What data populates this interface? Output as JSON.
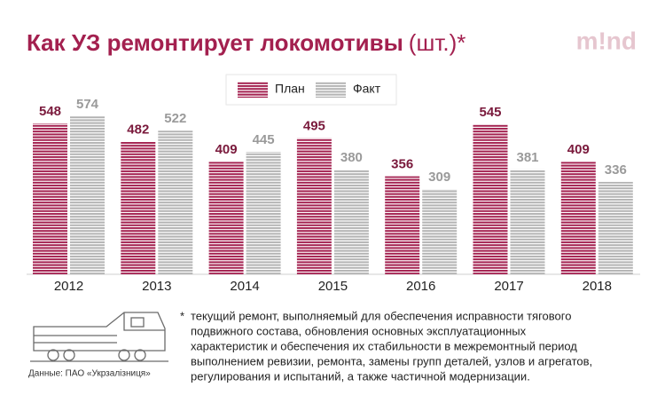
{
  "chart_data": {
    "type": "bar",
    "title": "Как УЗ ремонтирует локомотивы",
    "unit": "(шт.)*",
    "logo": "m!nd",
    "categories": [
      "2012",
      "2013",
      "2014",
      "2015",
      "2016",
      "2017",
      "2018"
    ],
    "series": [
      {
        "name": "План",
        "color": "#a3204f",
        "values": [
          548,
          482,
          409,
          495,
          356,
          545,
          409
        ]
      },
      {
        "name": "Факт",
        "color": "#b3b3b3",
        "values": [
          574,
          522,
          445,
          380,
          309,
          381,
          336
        ]
      }
    ],
    "footnote_marker": "*",
    "footnote": [
      "текущий ремонт, выполняемый для обеспечения исправности тягового",
      "подвижного состава, обновления основных эксплуатационных",
      "характеристик и обеспечения их стабильности в межремонтный период",
      "выполнением ревизии, ремонта, замены групп деталей, узлов и агрегатов,",
      "регулирования и испытаний, а также частичной модернизации."
    ],
    "source": "Данные: ПАО «Укрзалізниця»"
  }
}
